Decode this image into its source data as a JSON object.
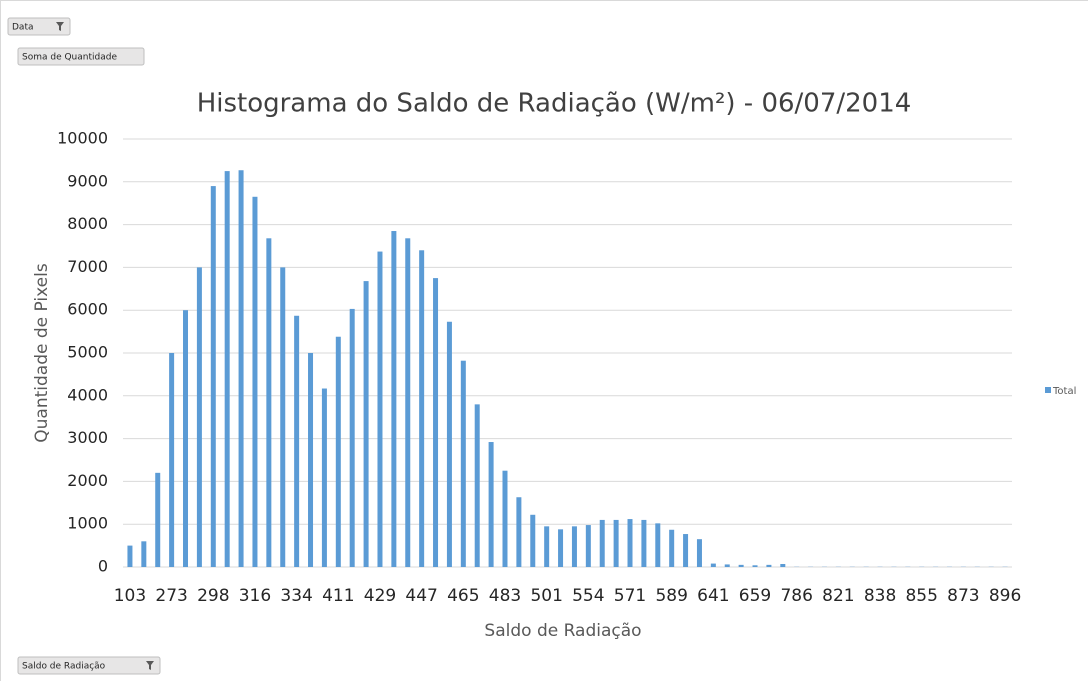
{
  "pivot": {
    "filter_field": "Data",
    "values_field": "Soma de Quantidade",
    "axis_field": "Saldo de Radiação"
  },
  "chart_data": {
    "type": "bar",
    "title": "Histograma do Saldo de Radiação (W/m²) - 06/07/2014",
    "x_label": "Saldo de Radiação",
    "y_label": "Quantidade de Pixels",
    "categories": [
      "103",
      null,
      null,
      "273",
      null,
      null,
      "298",
      null,
      null,
      "316",
      null,
      null,
      "334",
      null,
      null,
      "411",
      null,
      null,
      "429",
      null,
      null,
      "447",
      null,
      null,
      "465",
      null,
      null,
      "483",
      null,
      null,
      "501",
      null,
      null,
      "554",
      null,
      null,
      "571",
      null,
      null,
      "589",
      null,
      null,
      "641",
      null,
      null,
      "659",
      null,
      null,
      "786",
      null,
      null,
      "821",
      null,
      null,
      "838",
      null,
      null,
      "855",
      null,
      null,
      "873",
      null,
      null,
      "896"
    ],
    "series": [
      {
        "name": "Total",
        "color": "#5b9bd5",
        "values": [
          500,
          600,
          2200,
          5000,
          6000,
          7000,
          8900,
          9250,
          9270,
          8650,
          7680,
          7000,
          5870,
          5000,
          4170,
          5380,
          6030,
          6680,
          7370,
          7850,
          7680,
          7400,
          6750,
          5730,
          4820,
          3800,
          2920,
          2250,
          1630,
          1220,
          950,
          880,
          950,
          980,
          1100,
          1100,
          1120,
          1100,
          1020,
          870,
          770,
          650,
          80,
          60,
          50,
          40,
          50,
          70,
          5,
          5,
          5,
          5,
          5,
          5,
          5,
          5,
          5,
          5,
          5,
          5,
          5,
          5,
          5,
          5
        ]
      }
    ],
    "ylim": [
      0,
      10000
    ],
    "yticks": [
      0,
      1000,
      2000,
      3000,
      4000,
      5000,
      6000,
      7000,
      8000,
      9000,
      10000
    ],
    "grid": true,
    "legend": "right"
  }
}
